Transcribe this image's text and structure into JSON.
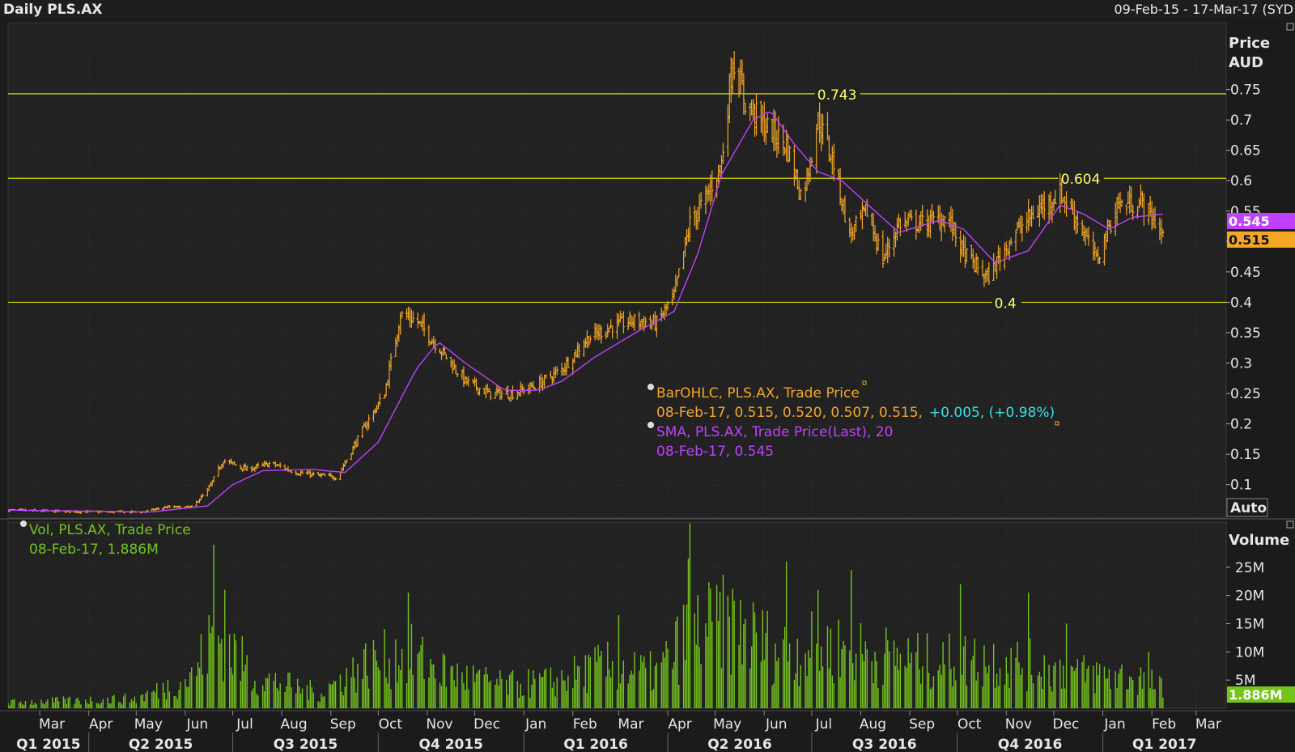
{
  "header": {
    "title": "Daily PLS.AX",
    "range": "09-Feb-15 - 17-Mar-17 (SYD"
  },
  "price_panel": {
    "axis_title_1": "Price",
    "axis_title_2": "AUD",
    "auto_label": "Auto",
    "legend": {
      "ohlc_name": "BarOHLC, PLS.AX, Trade Price",
      "ohlc_values": "08-Feb-17, 0.515, 0.520, 0.507, 0.515,",
      "ohlc_change": "+0.005, (+0.98%)",
      "sma_name": "SMA, PLS.AX, Trade Price(Last),  20",
      "sma_values": "08-Feb-17, 0.545"
    },
    "badges": {
      "sma_last": "0.545",
      "price_last": "0.515"
    },
    "levels": [
      {
        "value": 0.743,
        "label": "0.743",
        "label_date": "2016-07-04"
      },
      {
        "value": 0.604,
        "label": "0.604",
        "label_date": "2016-12-05"
      },
      {
        "value": 0.4,
        "label": "0.4",
        "label_date": "2016-10-24"
      }
    ]
  },
  "volume_panel": {
    "axis_title": "Volume",
    "last_badge": "1.886M",
    "legend": {
      "name": "Vol, PLS.AX, Trade Price",
      "values": "08-Feb-17, 1.886M"
    }
  },
  "colors": {
    "background": "#1b1b1b",
    "price_bars": "#f5a623",
    "sma": "#c040ff",
    "levels": "#d8d800",
    "volume": "#74c51a",
    "change": "#35e0e0",
    "axis_text": "#e6e6e6"
  },
  "chart_data": [
    {
      "type": "bar",
      "title": "Daily PLS.AX",
      "ylabel": "Price AUD",
      "ylim": [
        0.045,
        0.86
      ],
      "xlim": [
        "2015-02-09",
        "2017-03-20"
      ],
      "y_ticks": [
        0.1,
        0.15,
        0.2,
        0.25,
        0.3,
        0.35,
        0.4,
        0.45,
        0.5,
        0.55,
        0.6,
        0.65,
        0.7,
        0.75
      ],
      "x_month_ticks": [
        {
          "date": "2015-03-01",
          "label": "Mar"
        },
        {
          "date": "2015-04-01",
          "label": "Apr"
        },
        {
          "date": "2015-05-01",
          "label": "May"
        },
        {
          "date": "2015-06-01",
          "label": "Jun"
        },
        {
          "date": "2015-07-01",
          "label": "Jul"
        },
        {
          "date": "2015-08-01",
          "label": "Aug"
        },
        {
          "date": "2015-09-01",
          "label": "Sep"
        },
        {
          "date": "2015-10-01",
          "label": "Oct"
        },
        {
          "date": "2015-11-01",
          "label": "Nov"
        },
        {
          "date": "2015-12-01",
          "label": "Dec"
        },
        {
          "date": "2016-01-01",
          "label": "Jan"
        },
        {
          "date": "2016-02-01",
          "label": "Feb"
        },
        {
          "date": "2016-03-01",
          "label": "Mar"
        },
        {
          "date": "2016-04-01",
          "label": "Apr"
        },
        {
          "date": "2016-05-01",
          "label": "May"
        },
        {
          "date": "2016-06-01",
          "label": "Jun"
        },
        {
          "date": "2016-07-01",
          "label": "Jul"
        },
        {
          "date": "2016-08-01",
          "label": "Aug"
        },
        {
          "date": "2016-09-01",
          "label": "Sep"
        },
        {
          "date": "2016-10-01",
          "label": "Oct"
        },
        {
          "date": "2016-11-01",
          "label": "Nov"
        },
        {
          "date": "2016-12-01",
          "label": "Dec"
        },
        {
          "date": "2017-01-01",
          "label": "Jan"
        },
        {
          "date": "2017-02-01",
          "label": "Feb"
        },
        {
          "date": "2017-03-01",
          "label": "Mar"
        }
      ],
      "x_quarter_labels": [
        {
          "start": "2015-02-09",
          "end": "2015-04-01",
          "label": "Q1 2015"
        },
        {
          "start": "2015-04-01",
          "end": "2015-07-01",
          "label": "Q2 2015"
        },
        {
          "start": "2015-07-01",
          "end": "2015-10-01",
          "label": "Q3 2015"
        },
        {
          "start": "2015-10-01",
          "end": "2016-01-01",
          "label": "Q4 2015"
        },
        {
          "start": "2016-01-01",
          "end": "2016-04-01",
          "label": "Q1 2016"
        },
        {
          "start": "2016-04-01",
          "end": "2016-07-01",
          "label": "Q2 2016"
        },
        {
          "start": "2016-07-01",
          "end": "2016-10-01",
          "label": "Q3 2016"
        },
        {
          "start": "2016-10-01",
          "end": "2017-01-01",
          "label": "Q4 2016"
        },
        {
          "start": "2017-01-01",
          "end": "2017-03-20",
          "label": "Q1 2017"
        }
      ],
      "close_path": [
        [
          "2015-02-09",
          0.058
        ],
        [
          "2015-03-15",
          0.056
        ],
        [
          "2015-04-15",
          0.055
        ],
        [
          "2015-05-05",
          0.055
        ],
        [
          "2015-05-20",
          0.063
        ],
        [
          "2015-06-05",
          0.063
        ],
        [
          "2015-06-15",
          0.09
        ],
        [
          "2015-06-25",
          0.14
        ],
        [
          "2015-07-10",
          0.125
        ],
        [
          "2015-07-25",
          0.135
        ],
        [
          "2015-08-10",
          0.12
        ],
        [
          "2015-08-25",
          0.115
        ],
        [
          "2015-09-05",
          0.112
        ],
        [
          "2015-09-20",
          0.185
        ],
        [
          "2015-10-05",
          0.25
        ],
        [
          "2015-10-15",
          0.38
        ],
        [
          "2015-10-25",
          0.37
        ],
        [
          "2015-11-10",
          0.32
        ],
        [
          "2015-11-25",
          0.27
        ],
        [
          "2015-12-10",
          0.25
        ],
        [
          "2015-12-25",
          0.25
        ],
        [
          "2016-01-10",
          0.265
        ],
        [
          "2016-01-25",
          0.29
        ],
        [
          "2016-02-10",
          0.34
        ],
        [
          "2016-02-25",
          0.36
        ],
        [
          "2016-03-10",
          0.37
        ],
        [
          "2016-03-25",
          0.365
        ],
        [
          "2016-04-05",
          0.41
        ],
        [
          "2016-04-15",
          0.53
        ],
        [
          "2016-04-25",
          0.57
        ],
        [
          "2016-05-05",
          0.63
        ],
        [
          "2016-05-12",
          0.8
        ],
        [
          "2016-05-20",
          0.73
        ],
        [
          "2016-06-01",
          0.69
        ],
        [
          "2016-06-15",
          0.66
        ],
        [
          "2016-06-25",
          0.57
        ],
        [
          "2016-07-05",
          0.7
        ],
        [
          "2016-07-15",
          0.63
        ],
        [
          "2016-07-25",
          0.51
        ],
        [
          "2016-08-05",
          0.55
        ],
        [
          "2016-08-15",
          0.47
        ],
        [
          "2016-08-25",
          0.53
        ],
        [
          "2016-09-10",
          0.53
        ],
        [
          "2016-09-25",
          0.54
        ],
        [
          "2016-10-05",
          0.48
        ],
        [
          "2016-10-20",
          0.44
        ],
        [
          "2016-11-05",
          0.51
        ],
        [
          "2016-11-20",
          0.55
        ],
        [
          "2016-12-05",
          0.58
        ],
        [
          "2016-12-15",
          0.54
        ],
        [
          "2016-12-28",
          0.47
        ],
        [
          "2017-01-10",
          0.56
        ],
        [
          "2017-01-25",
          0.565
        ],
        [
          "2017-02-08",
          0.515
        ]
      ],
      "sma_path": [
        [
          "2015-02-09",
          0.058
        ],
        [
          "2015-05-10",
          0.055
        ],
        [
          "2015-06-15",
          0.065
        ],
        [
          "2015-07-01",
          0.1
        ],
        [
          "2015-07-20",
          0.123
        ],
        [
          "2015-08-20",
          0.125
        ],
        [
          "2015-09-10",
          0.12
        ],
        [
          "2015-10-01",
          0.17
        ],
        [
          "2015-10-25",
          0.29
        ],
        [
          "2015-11-08",
          0.335
        ],
        [
          "2015-11-25",
          0.3
        ],
        [
          "2015-12-20",
          0.255
        ],
        [
          "2016-01-10",
          0.255
        ],
        [
          "2016-01-25",
          0.27
        ],
        [
          "2016-02-15",
          0.31
        ],
        [
          "2016-03-15",
          0.355
        ],
        [
          "2016-04-05",
          0.385
        ],
        [
          "2016-04-20",
          0.48
        ],
        [
          "2016-05-05",
          0.61
        ],
        [
          "2016-05-25",
          0.7
        ],
        [
          "2016-06-05",
          0.715
        ],
        [
          "2016-06-20",
          0.66
        ],
        [
          "2016-07-05",
          0.615
        ],
        [
          "2016-07-20",
          0.6
        ],
        [
          "2016-08-10",
          0.55
        ],
        [
          "2016-08-25",
          0.515
        ],
        [
          "2016-09-20",
          0.535
        ],
        [
          "2016-10-05",
          0.52
        ],
        [
          "2016-10-25",
          0.465
        ],
        [
          "2016-11-15",
          0.485
        ],
        [
          "2016-12-05",
          0.56
        ],
        [
          "2016-12-20",
          0.545
        ],
        [
          "2017-01-05",
          0.52
        ],
        [
          "2017-01-20",
          0.54
        ],
        [
          "2017-02-08",
          0.545
        ]
      ],
      "last_bar": {
        "date": "2017-02-08",
        "open": 0.515,
        "high": 0.52,
        "low": 0.507,
        "close": 0.515
      },
      "last_sma": 0.545
    },
    {
      "type": "bar",
      "title": "Vol, PLS.AX, Trade Price",
      "ylabel": "Volume",
      "ylim": [
        0,
        33000000
      ],
      "y_ticks": [
        {
          "value": 5000000,
          "label": "5M"
        },
        {
          "value": 10000000,
          "label": "10M"
        },
        {
          "value": 15000000,
          "label": "15M"
        },
        {
          "value": 20000000,
          "label": "20M"
        },
        {
          "value": 25000000,
          "label": "25M"
        }
      ],
      "volume_envelope": [
        [
          "2015-02-09",
          1500000
        ],
        [
          "2015-05-01",
          2500000
        ],
        [
          "2015-06-05",
          8000000
        ],
        [
          "2015-06-20",
          20000000
        ],
        [
          "2015-07-15",
          8000000
        ],
        [
          "2015-08-25",
          4000000
        ],
        [
          "2015-09-25",
          12000000
        ],
        [
          "2015-10-20",
          14000000
        ],
        [
          "2015-11-15",
          9000000
        ],
        [
          "2015-12-20",
          6000000
        ],
        [
          "2016-01-20",
          7000000
        ],
        [
          "2016-02-20",
          11000000
        ],
        [
          "2016-03-25",
          9000000
        ],
        [
          "2016-04-15",
          20000000
        ],
        [
          "2016-05-10",
          22000000
        ],
        [
          "2016-06-10",
          15000000
        ],
        [
          "2016-07-10",
          16000000
        ],
        [
          "2016-08-10",
          14000000
        ],
        [
          "2016-09-15",
          12000000
        ],
        [
          "2016-10-20",
          13000000
        ],
        [
          "2016-11-20",
          11000000
        ],
        [
          "2016-12-20",
          9000000
        ],
        [
          "2017-01-25",
          8000000
        ],
        [
          "2017-02-08",
          5000000
        ]
      ],
      "volume_spikes": [
        [
          "2015-06-19",
          29000000
        ],
        [
          "2015-06-26",
          21000000
        ],
        [
          "2015-10-20",
          20500000
        ],
        [
          "2016-03-01",
          16500000
        ],
        [
          "2016-04-14",
          26500000
        ],
        [
          "2016-04-15",
          32800000
        ],
        [
          "2016-05-26",
          17000000
        ],
        [
          "2016-06-15",
          26000000
        ],
        [
          "2016-07-05",
          21000000
        ],
        [
          "2016-07-26",
          24500000
        ],
        [
          "2016-10-03",
          22000000
        ],
        [
          "2016-11-15",
          20500000
        ],
        [
          "2016-12-09",
          15000000
        ],
        [
          "2017-01-30",
          10000000
        ]
      ],
      "last_volume": 1886000
    }
  ]
}
